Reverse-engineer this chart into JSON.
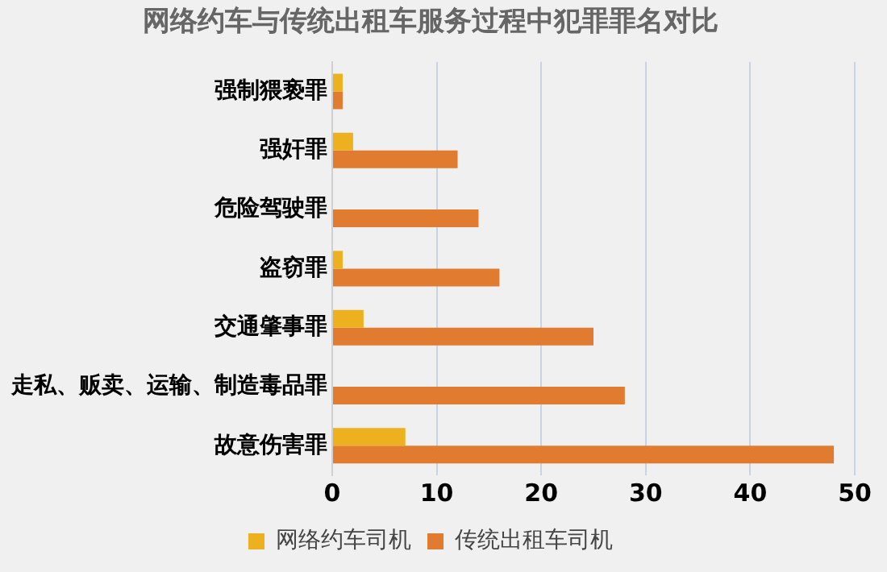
{
  "chart_data": {
    "type": "bar",
    "orientation": "horizontal",
    "title": "网络约车与传统出租车服务过程中犯罪罪名对比",
    "categories": [
      "强制猥亵罪",
      "强奸罪",
      "危险驾驶罪",
      "盗窃罪",
      "交通肇事罪",
      "走私、贩卖、运输、制造毒品罪",
      "故意伤害罪"
    ],
    "series": [
      {
        "name": "网络约车司机",
        "color": "#edb120",
        "values": [
          1,
          2,
          0,
          1,
          3,
          0,
          7
        ]
      },
      {
        "name": "传统出租车司机",
        "color": "#e07b30",
        "values": [
          1,
          12,
          14,
          16,
          25,
          28,
          48
        ]
      }
    ],
    "xlim": [
      0,
      50
    ],
    "xticks": [
      0,
      10,
      20,
      30,
      40,
      50
    ],
    "grid": "x",
    "legend": "bottom"
  }
}
